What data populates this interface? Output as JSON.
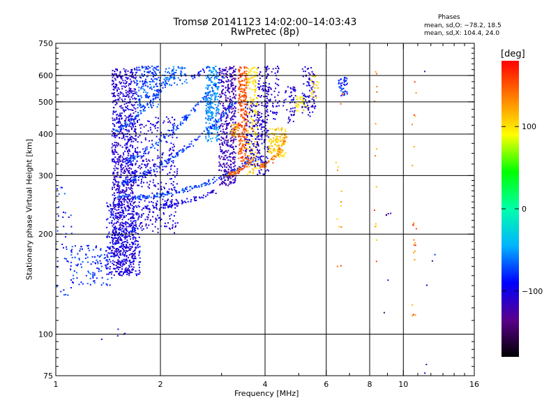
{
  "title_line1": "Tromsø 20141123 14:02:00–14:03:43",
  "title_line2": "RwPretec (8p)",
  "phases": {
    "heading": "Phases",
    "line_o": "mean, sd,O: −78.2, 18.5",
    "line_x": "mean, sd,X: 104.4, 24.0"
  },
  "colorbar": {
    "unit_label": "[deg]",
    "ticks": [
      {
        "value": 100,
        "label": "100"
      },
      {
        "value": 0,
        "label": "0"
      },
      {
        "value": -100,
        "label": "−100"
      }
    ],
    "range": [
      -180,
      180
    ],
    "stops": [
      "#000000",
      "#5a008c",
      "#0000ff",
      "#00b4ff",
      "#00ffaa",
      "#00ff00",
      "#ffff00",
      "#ff8000",
      "#ff0000"
    ]
  },
  "chart_data": {
    "type": "scatter",
    "title": "Tromsø 20141123 14:02:00–14:03:43 RwPretec (8p)",
    "xlabel": "Frequency [MHz]",
    "ylabel": "Stationary phase Virtual Height [km]",
    "x_scale": "log",
    "y_scale": "log",
    "xlim": [
      1,
      16
    ],
    "ylim": [
      75,
      750
    ],
    "x_ticks": [
      {
        "value": 1,
        "label": "1"
      },
      {
        "value": 2,
        "label": "2"
      },
      {
        "value": 4,
        "label": "4"
      },
      {
        "value": 6,
        "label": "6"
      },
      {
        "value": 8,
        "label": "8"
      },
      {
        "value": 10,
        "label": "10"
      },
      {
        "value": 16,
        "label": "16"
      }
    ],
    "y_ticks": [
      {
        "value": 75,
        "label": "75"
      },
      {
        "value": 100,
        "label": "100"
      },
      {
        "value": 200,
        "label": "200"
      },
      {
        "value": 300,
        "label": "300"
      },
      {
        "value": 400,
        "label": "400"
      },
      {
        "value": 500,
        "label": "500"
      },
      {
        "value": 600,
        "label": "600"
      },
      {
        "value": 750,
        "label": "750"
      }
    ],
    "x_gridlines": [
      2,
      4,
      6,
      8,
      10
    ],
    "y_gridlines": [
      100,
      200,
      300,
      400,
      500,
      600
    ],
    "color_dimension": "phase [deg]",
    "clusters": [
      {
        "f": [
          1.45,
          1.7
        ],
        "h": [
          150,
          630
        ],
        "phase": [
          -120,
          -95
        ],
        "n": 1100
      },
      {
        "f": [
          1.4,
          1.75
        ],
        "h": [
          150,
          250
        ],
        "phase": [
          -110,
          -75
        ],
        "n": 250
      },
      {
        "f": [
          1.1,
          1.45
        ],
        "h": [
          140,
          185
        ],
        "phase": [
          -100,
          -60
        ],
        "n": 120
      },
      {
        "f": [
          1.0,
          1.12
        ],
        "h": [
          130,
          280
        ],
        "phase": [
          -95,
          -60
        ],
        "n": 40
      },
      {
        "f": [
          1.7,
          2.25
        ],
        "h": [
          200,
          450
        ],
        "phase": [
          -120,
          -90
        ],
        "n": 350
      },
      {
        "f": [
          1.7,
          2.0
        ],
        "h": [
          480,
          640
        ],
        "phase": [
          -100,
          -55
        ],
        "n": 180
      },
      {
        "f": [
          2.0,
          2.4
        ],
        "h": [
          560,
          640
        ],
        "phase": [
          -80,
          -50
        ],
        "n": 60
      },
      {
        "f": [
          2.7,
          2.95
        ],
        "h": [
          380,
          640
        ],
        "phase": [
          -70,
          -40
        ],
        "n": 250
      },
      {
        "f": [
          2.95,
          3.3
        ],
        "h": [
          280,
          640
        ],
        "phase": [
          -130,
          -105
        ],
        "n": 450
      },
      {
        "f": [
          3.2,
          3.35
        ],
        "h": [
          390,
          430
        ],
        "phase": [
          110,
          140
        ],
        "n": 40
      },
      {
        "f": [
          3.35,
          3.55
        ],
        "h": [
          330,
          640
        ],
        "phase": [
          130,
          170
        ],
        "n": 250
      },
      {
        "f": [
          3.55,
          3.8
        ],
        "h": [
          300,
          640
        ],
        "phase": [
          90,
          115
        ],
        "n": 180
      },
      {
        "f": [
          3.5,
          3.85
        ],
        "h": [
          320,
          500
        ],
        "phase": [
          -130,
          -95
        ],
        "n": 120
      },
      {
        "f": [
          3.8,
          4.1
        ],
        "h": [
          300,
          640
        ],
        "phase": [
          -120,
          -90
        ],
        "n": 160
      },
      {
        "f": [
          4.1,
          4.6
        ],
        "h": [
          340,
          420
        ],
        "phase": [
          95,
          120
        ],
        "n": 120
      },
      {
        "f": [
          4.0,
          4.4
        ],
        "h": [
          440,
          640
        ],
        "phase": [
          -120,
          -90
        ],
        "n": 80
      },
      {
        "f": [
          4.5,
          4.9
        ],
        "h": [
          430,
          560
        ],
        "phase": [
          -120,
          -90
        ],
        "n": 50
      },
      {
        "f": [
          4.9,
          5.3
        ],
        "h": [
          470,
          520
        ],
        "phase": [
          90,
          115
        ],
        "n": 40
      },
      {
        "f": [
          5.1,
          5.6
        ],
        "h": [
          450,
          640
        ],
        "phase": [
          -120,
          -85
        ],
        "n": 80
      },
      {
        "f": [
          5.4,
          5.7
        ],
        "h": [
          510,
          600
        ],
        "phase": [
          95,
          115
        ],
        "n": 25
      },
      {
        "f": [
          6.5,
          6.9
        ],
        "h": [
          520,
          600
        ],
        "phase": [
          -100,
          -65
        ],
        "n": 40
      },
      {
        "f": [
          6.4,
          6.7
        ],
        "h": [
          150,
          640
        ],
        "phase": [
          100,
          170
        ],
        "n": 14
      },
      {
        "f": [
          8.25,
          8.4
        ],
        "h": [
          160,
          620
        ],
        "phase": [
          100,
          160
        ],
        "n": 16
      },
      {
        "f": [
          10.6,
          10.9
        ],
        "h": [
          110,
          600
        ],
        "phase": [
          110,
          175
        ],
        "n": 22
      },
      {
        "f": [
          8.8,
          9.2
        ],
        "h": [
          95,
          300
        ],
        "phase": [
          -150,
          -100
        ],
        "n": 6
      },
      {
        "f": [
          11.5,
          12.5
        ],
        "h": [
          75,
          680
        ],
        "phase": [
          -150,
          -70
        ],
        "n": 6
      },
      {
        "f": [
          1.3,
          1.85
        ],
        "h": [
          95,
          105
        ],
        "phase": [
          -120,
          -80
        ],
        "n": 5
      }
    ],
    "traces": [
      {
        "f0": 1.5,
        "h0": 260,
        "f1": 3.8,
        "h1": 340,
        "curve": 0.35,
        "phase": [
          -90,
          -60
        ],
        "n": 170
      },
      {
        "f0": 1.55,
        "h0": 285,
        "f1": 3.3,
        "h1": 500,
        "curve": 0.3,
        "phase": [
          -95,
          -65
        ],
        "n": 150
      },
      {
        "f0": 1.6,
        "h0": 330,
        "f1": 3.0,
        "h1": 590,
        "curve": 0.25,
        "phase": [
          -90,
          -60
        ],
        "n": 130
      },
      {
        "f0": 1.45,
        "h0": 400,
        "f1": 2.2,
        "h1": 620,
        "curve": 0.2,
        "phase": [
          -85,
          -55
        ],
        "n": 90
      },
      {
        "f0": 1.8,
        "h0": 240,
        "f1": 2.9,
        "h1": 270,
        "curve": 0.1,
        "phase": [
          -110,
          -90
        ],
        "n": 80
      },
      {
        "f0": 3.1,
        "h0": 300,
        "f1": 3.7,
        "h1": 340,
        "curve": 0.1,
        "phase": [
          130,
          170
        ],
        "n": 60
      },
      {
        "f0": 3.9,
        "h0": 320,
        "f1": 4.6,
        "h1": 400,
        "curve": 0.2,
        "phase": [
          120,
          160
        ],
        "n": 60
      },
      {
        "f0": 2.4,
        "h0": 600,
        "f1": 2.7,
        "h1": 630,
        "curve": 0.1,
        "phase": [
          -100,
          -80
        ],
        "n": 20
      }
    ]
  }
}
